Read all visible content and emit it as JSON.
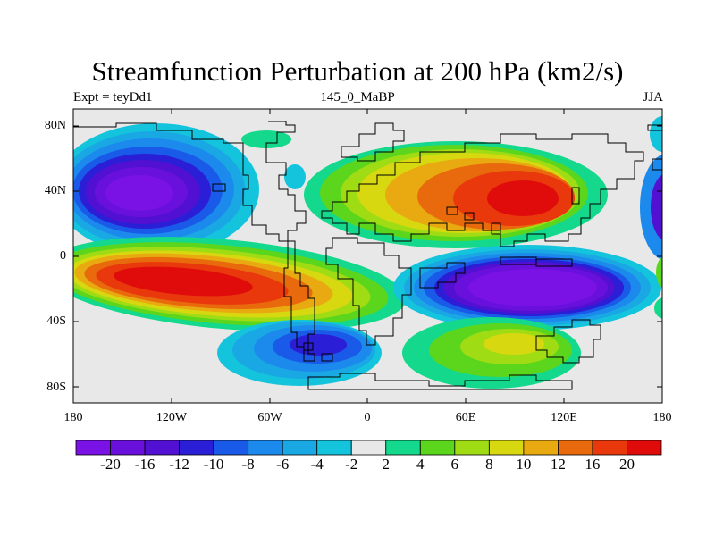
{
  "title": "Streamfunction Perturbation at 200 hPa (km2/s)",
  "left_string": "Expt = teyDd1",
  "center_string": "145_0_MaBP",
  "right_string": "JJA",
  "y_ticks": [
    "80N",
    "40N",
    "0",
    "40S",
    "80S"
  ],
  "x_ticks": [
    "180",
    "120W",
    "60W",
    "0",
    "60E",
    "120E",
    "180"
  ],
  "colorbar": {
    "labels": [
      "-20",
      "-16",
      "-12",
      "-10",
      "-8",
      "-6",
      "-4",
      "-2",
      "2",
      "4",
      "6",
      "8",
      "10",
      "12",
      "16",
      "20"
    ],
    "colors": [
      "#7a12e6",
      "#6a10dc",
      "#5210d2",
      "#2a1ed6",
      "#1a5ae8",
      "#1c8aec",
      "#1aa8e4",
      "#14c4dc",
      "#e8e8e8",
      "#14d88c",
      "#5cd61c",
      "#a0dc14",
      "#d8d810",
      "#e8aa10",
      "#e86a0c",
      "#e8380c",
      "#e00c0c"
    ]
  }
}
